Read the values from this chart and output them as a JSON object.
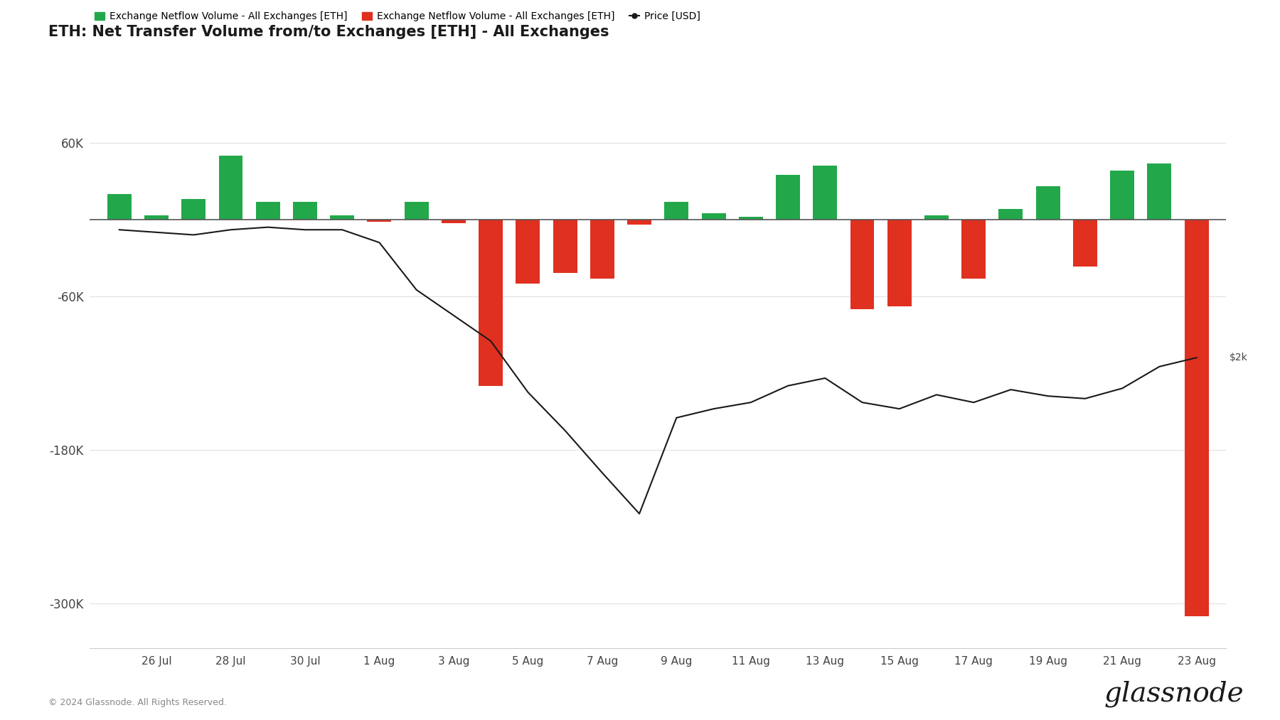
{
  "title": "ETH: Net Transfer Volume from/to Exchanges [ETH] - All Exchanges",
  "legend_green": "Exchange Netflow Volume - All Exchanges [ETH]",
  "legend_red": "Exchange Netflow Volume - All Exchanges [ETH]",
  "legend_black": "Price [USD]",
  "bar_values": [
    20000,
    3000,
    16000,
    50000,
    14000,
    14000,
    3000,
    -2000,
    14000,
    -3000,
    -130000,
    -50000,
    -42000,
    -46000,
    -4000,
    14000,
    5000,
    2000,
    35000,
    42000,
    -70000,
    -68000,
    3000,
    -46000,
    8000,
    26000,
    -37000,
    38000,
    44000,
    -310000
  ],
  "price_values": [
    -8000,
    -10000,
    -12000,
    -8000,
    -6000,
    -8000,
    -8000,
    -18000,
    -55000,
    -75000,
    -95000,
    -135000,
    -165000,
    -198000,
    -230000,
    -155000,
    -148000,
    -143000,
    -130000,
    -124000,
    -143000,
    -148000,
    -137000,
    -143000,
    -133000,
    -138000,
    -140000,
    -132000,
    -115000,
    -108000
  ],
  "xtick_labels": [
    "26 Jul",
    "28 Jul",
    "30 Jul",
    "1 Aug",
    "3 Aug",
    "5 Aug",
    "7 Aug",
    "9 Aug",
    "11 Aug",
    "13 Aug",
    "15 Aug",
    "17 Aug",
    "19 Aug",
    "21 Aug",
    "23 Aug"
  ],
  "xtick_positions": [
    1,
    3,
    5,
    7,
    9,
    11,
    13,
    15,
    17,
    19,
    21,
    23,
    25,
    27,
    29
  ],
  "ytick_labels": [
    "60K",
    "-60K",
    "-180K",
    "-300K"
  ],
  "ytick_values": [
    60000,
    -60000,
    -180000,
    -300000
  ],
  "ylim": [
    -335000,
    90000
  ],
  "green_color": "#22a84b",
  "red_color": "#e03020",
  "price_color": "#1a1a1a",
  "background_color": "#ffffff",
  "grid_color": "#e0e0e0",
  "zero_line_color": "#555555",
  "copyright_text": "© 2024 Glassnode. All Rights Reserved.",
  "watermark_text": "glassnode",
  "price_label": "$2k"
}
